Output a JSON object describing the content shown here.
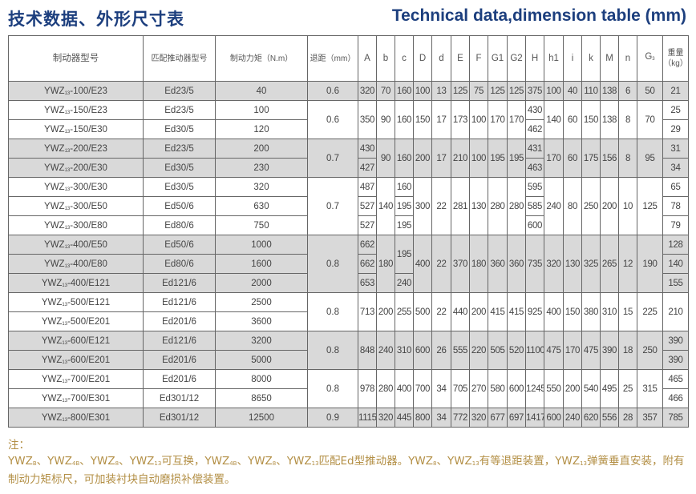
{
  "title_cn": "技术数据、外形尺寸表",
  "title_en": "Technical data,dimension table (mm)",
  "headers": {
    "model": "制动器型号",
    "pusher": "匹配推动器型号",
    "torque": "制动力矩（N.m）",
    "retract": "退距（mm）",
    "dims": [
      {
        "main": "A",
        "sub": ""
      },
      {
        "main": "b",
        "sub": ""
      },
      {
        "main": "c",
        "sub": ""
      },
      {
        "main": "D",
        "sub": ""
      },
      {
        "main": "d",
        "sub": ""
      },
      {
        "main": "E",
        "sub": ""
      },
      {
        "main": "F",
        "sub": ""
      },
      {
        "main": "G1",
        "sub": ""
      },
      {
        "main": "G2",
        "sub": ""
      },
      {
        "main": "H",
        "sub": ""
      },
      {
        "main": "h1",
        "sub": ""
      },
      {
        "main": "i",
        "sub": ""
      },
      {
        "main": "k",
        "sub": ""
      },
      {
        "main": "M",
        "sub": ""
      },
      {
        "main": "n",
        "sub": ""
      },
      {
        "main": "G",
        "sub": "3"
      }
    ],
    "weight": "重量（kg）"
  },
  "groups": [
    {
      "rows": [
        {
          "model": "YWZ",
          "sub": "13",
          "suffix": "-100/E23",
          "pusher": "Ed23/5",
          "torque": "40"
        }
      ],
      "retract": "0.6",
      "dims": [
        "320",
        "70",
        "160",
        "100",
        "13",
        "125",
        "75",
        "125",
        "125",
        "375",
        "100",
        "40",
        "110",
        "138",
        "6",
        "50"
      ],
      "weight": [
        "21"
      ]
    },
    {
      "rows": [
        {
          "model": "YWZ",
          "sub": "13",
          "suffix": "-150/E23",
          "pusher": "Ed23/5",
          "torque": "100"
        },
        {
          "model": "YWZ",
          "sub": "13",
          "suffix": "-150/E30",
          "pusher": "Ed30/5",
          "torque": "120"
        }
      ],
      "retract": "0.6",
      "dims": [
        "350",
        "90",
        "160",
        "150",
        "17",
        "173",
        "100",
        "170",
        "170",
        [
          "430",
          "462"
        ],
        "140",
        "60",
        "150",
        "138",
        "8",
        "70"
      ],
      "weight": [
        "25",
        "29"
      ]
    },
    {
      "rows": [
        {
          "model": "YWZ",
          "sub": "13",
          "suffix": "-200/E23",
          "pusher": "Ed23/5",
          "torque": "200"
        },
        {
          "model": "YWZ",
          "sub": "13",
          "suffix": "-200/E30",
          "pusher": "Ed30/5",
          "torque": "230"
        }
      ],
      "retract": "0.7",
      "dims": [
        [
          "430",
          "427"
        ],
        "90",
        "160",
        "200",
        "17",
        "210",
        "100",
        "195",
        "195",
        [
          "431",
          "463"
        ],
        "170",
        "60",
        "175",
        "156",
        "8",
        "95"
      ],
      "weight": [
        "31",
        "34"
      ]
    },
    {
      "rows": [
        {
          "model": "YWZ",
          "sub": "13",
          "suffix": "-300/E30",
          "pusher": "Ed30/5",
          "torque": "320"
        },
        {
          "model": "YWZ",
          "sub": "13",
          "suffix": "-300/E50",
          "pusher": "Ed50/6",
          "torque": "630"
        },
        {
          "model": "YWZ",
          "sub": "13",
          "suffix": "-300/E80",
          "pusher": "Ed80/6",
          "torque": "750"
        }
      ],
      "retract": "0.7",
      "dims": [
        [
          "487",
          "527",
          "527"
        ],
        "140",
        [
          "160",
          "195",
          "195"
        ],
        "300",
        "22",
        "281",
        "130",
        "280",
        "280",
        [
          "595",
          "585",
          "600"
        ],
        "240",
        "80",
        "250",
        "200",
        "10",
        "125"
      ],
      "weight": [
        "65",
        "78",
        "79"
      ]
    },
    {
      "rows": [
        {
          "model": "YWZ",
          "sub": "13",
          "suffix": "-400/E50",
          "pusher": "Ed50/6",
          "torque": "1000"
        },
        {
          "model": "YWZ",
          "sub": "13",
          "suffix": "-400/E80",
          "pusher": "Ed80/6",
          "torque": "1600"
        },
        {
          "model": "YWZ",
          "sub": "13",
          "suffix": "-400/E121",
          "pusher": "Ed121/6",
          "torque": "2000"
        }
      ],
      "retract": "0.8",
      "dims": [
        [
          "662",
          "662",
          "653"
        ],
        "180",
        [
          "195",
          null,
          "240"
        ],
        "400",
        "22",
        "370",
        "180",
        "360",
        "360",
        "735",
        "320",
        "130",
        "325",
        "265",
        "12",
        "190"
      ],
      "weight": [
        "128",
        "140",
        "155"
      ]
    },
    {
      "rows": [
        {
          "model": "YWZ",
          "sub": "13",
          "suffix": "-500/E121",
          "pusher": "Ed121/6",
          "torque": "2500"
        },
        {
          "model": "YWZ",
          "sub": "13",
          "suffix": "-500/E201",
          "pusher": "Ed201/6",
          "torque": "3600"
        }
      ],
      "retract": "0.8",
      "dims": [
        "713",
        "200",
        "255",
        "500",
        "22",
        "440",
        "200",
        "415",
        "415",
        "925",
        "400",
        "150",
        "380",
        "310",
        "15",
        "225"
      ],
      "weight": [
        "210"
      ]
    },
    {
      "rows": [
        {
          "model": "YWZ",
          "sub": "13",
          "suffix": "-600/E121",
          "pusher": "Ed121/6",
          "torque": "3200"
        },
        {
          "model": "YWZ",
          "sub": "13",
          "suffix": "-600/E201",
          "pusher": "Ed201/6",
          "torque": "5000"
        }
      ],
      "retract": "0.8",
      "dims": [
        "848",
        "240",
        "310",
        "600",
        "26",
        "555",
        "220",
        "505",
        "520",
        "1100",
        "475",
        "170",
        "475",
        "390",
        "18",
        "250"
      ],
      "weight": [
        "390",
        "390"
      ]
    },
    {
      "rows": [
        {
          "model": "YWZ",
          "sub": "13",
          "suffix": "-700/E201",
          "pusher": "Ed201/6",
          "torque": "8000"
        },
        {
          "model": "YWZ",
          "sub": "13",
          "suffix": "-700/E301",
          "pusher": "Ed301/12",
          "torque": "8650"
        }
      ],
      "retract": "0.8",
      "dims": [
        "978",
        "280",
        "400",
        "700",
        "34",
        "705",
        "270",
        "580",
        "600",
        "1245",
        "550",
        "200",
        "540",
        "495",
        "25",
        "315"
      ],
      "weight": [
        "465",
        "466"
      ]
    },
    {
      "rows": [
        {
          "model": "YWZ",
          "sub": "13",
          "suffix": "-800/E301",
          "pusher": "Ed301/12",
          "torque": "12500"
        }
      ],
      "retract": "0.9",
      "dims": [
        "1115",
        "320",
        "445",
        "800",
        "34",
        "772",
        "320",
        "677",
        "697",
        "1417",
        "600",
        "240",
        "620",
        "556",
        "28",
        "357"
      ],
      "weight": [
        "785"
      ]
    }
  ],
  "notes": {
    "heading": "注：",
    "segments": [
      "YWZ",
      "B",
      "、YWZ",
      "4B",
      "、YWZ",
      "8",
      "、YWZ",
      "13",
      "可互换，YWZ",
      "4B",
      "、YWZ",
      "8",
      "、YWZ",
      "13",
      "匹配Ed型推动器。YWZ",
      "8",
      "、YWZ",
      "13",
      "有等退距装置，YWZ",
      "13",
      "弹簧垂直安装，附有制动力矩标尺，可加装衬块自动磨损补偿装置。",
      ""
    ]
  },
  "colors": {
    "title": "#1d3f7e",
    "notes": "#b38f45",
    "shaded_row": "#d9d9d9",
    "border": "#666666"
  }
}
